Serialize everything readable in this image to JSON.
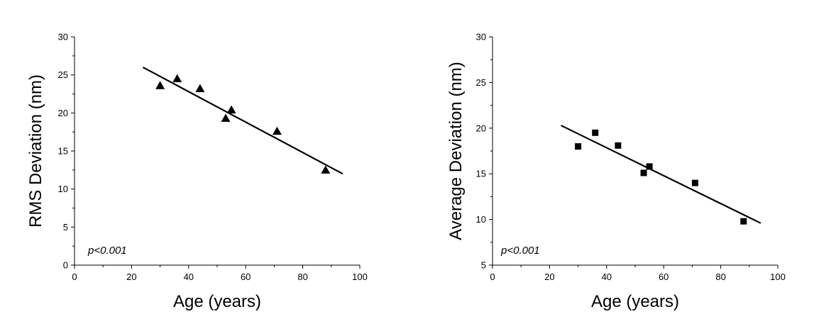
{
  "chart_data": [
    {
      "type": "scatter",
      "title": "",
      "xlabel": "Age (years)",
      "ylabel": "RMS Deviation (nm)",
      "xlim": [
        0,
        100
      ],
      "ylim": [
        0,
        30
      ],
      "xticks": [
        0,
        20,
        40,
        60,
        80,
        100
      ],
      "yticks": [
        0,
        5,
        10,
        15,
        20,
        25,
        30
      ],
      "grid": false,
      "marker": "triangle",
      "color": "#000000",
      "series": [
        {
          "x": [
            30,
            36,
            44,
            53,
            55,
            71,
            88
          ],
          "y": [
            23.6,
            24.5,
            23.2,
            19.3,
            20.4,
            17.6,
            12.5
          ]
        }
      ],
      "fit_line": {
        "x": [
          24,
          94
        ],
        "y": [
          26.0,
          12.0
        ]
      },
      "annotation": "p<0.001"
    },
    {
      "type": "scatter",
      "title": "",
      "xlabel": "Age (years)",
      "ylabel": "Average Deviation (nm)",
      "xlim": [
        0,
        100
      ],
      "ylim": [
        5,
        30
      ],
      "xticks": [
        0,
        20,
        40,
        60,
        80,
        100
      ],
      "yticks": [
        5,
        10,
        15,
        20,
        25,
        30
      ],
      "grid": false,
      "marker": "square",
      "color": "#000000",
      "series": [
        {
          "x": [
            30,
            36,
            44,
            53,
            55,
            71,
            88
          ],
          "y": [
            18.0,
            19.5,
            18.1,
            15.1,
            15.8,
            14.0,
            9.8
          ]
        }
      ],
      "fit_line": {
        "x": [
          24,
          94
        ],
        "y": [
          20.3,
          9.6
        ]
      },
      "annotation": "p<0.001"
    }
  ]
}
